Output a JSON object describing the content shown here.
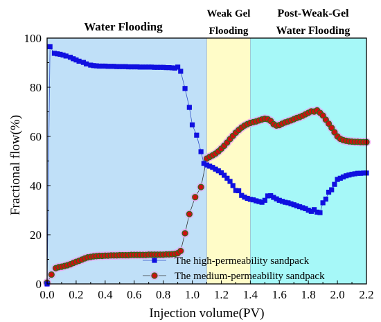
{
  "chart_data": {
    "type": "scatter",
    "xlabel": "Injection volume(PV)",
    "ylabel": "Fractional flow(%)",
    "xlim": [
      0,
      2.2
    ],
    "ylim": [
      0,
      100
    ],
    "x_ticks": [
      "0.0",
      "0.2",
      "0.4",
      "0.6",
      "0.8",
      "1.0",
      "1.2",
      "1.4",
      "1.6",
      "1.8",
      "2.0",
      "2.2"
    ],
    "y_ticks": [
      "0",
      "20",
      "40",
      "60",
      "80",
      "100"
    ],
    "grid": false,
    "legend_position": "bottom-center",
    "phases": [
      {
        "label_lines": [
          "Water Flooding"
        ],
        "x_start": 0.0,
        "x_end": 1.1,
        "color": "#c0e0f8"
      },
      {
        "label_lines": [
          "Weak Gel",
          "Flooding"
        ],
        "x_start": 1.1,
        "x_end": 1.4,
        "color": "#fffcc8"
      },
      {
        "label_lines": [
          "Post-Weak-Gel",
          "Water Flooding"
        ],
        "x_start": 1.4,
        "x_end": 2.2,
        "color": "#a6f8f8"
      }
    ],
    "series": [
      {
        "name": "The high-permeability sandpack",
        "marker": "square",
        "color": "#1010e0",
        "x": [
          0.0,
          0.02,
          0.05,
          0.07,
          0.09,
          0.11,
          0.13,
          0.16,
          0.18,
          0.2,
          0.22,
          0.25,
          0.27,
          0.3,
          0.32,
          0.34,
          0.36,
          0.38,
          0.4,
          0.42,
          0.44,
          0.46,
          0.48,
          0.5,
          0.52,
          0.54,
          0.56,
          0.58,
          0.6,
          0.62,
          0.64,
          0.66,
          0.68,
          0.7,
          0.72,
          0.74,
          0.76,
          0.78,
          0.8,
          0.82,
          0.84,
          0.86,
          0.88,
          0.9,
          0.92,
          0.95,
          0.98,
          1.0,
          1.03,
          1.06,
          1.08,
          1.1,
          1.12,
          1.14,
          1.16,
          1.18,
          1.2,
          1.22,
          1.24,
          1.26,
          1.28,
          1.3,
          1.32,
          1.34,
          1.36,
          1.38,
          1.4,
          1.42,
          1.44,
          1.46,
          1.48,
          1.5,
          1.52,
          1.54,
          1.56,
          1.58,
          1.6,
          1.62,
          1.64,
          1.66,
          1.68,
          1.7,
          1.72,
          1.74,
          1.76,
          1.78,
          1.8,
          1.82,
          1.84,
          1.86,
          1.88,
          1.9,
          1.92,
          1.94,
          1.96,
          1.98,
          2.0,
          2.02,
          2.04,
          2.06,
          2.08,
          2.1,
          2.12,
          2.14,
          2.16,
          2.18,
          2.2
        ],
        "y": [
          0,
          96.5,
          93.8,
          93.6,
          93.4,
          93.1,
          92.7,
          92.2,
          91.6,
          91.1,
          90.6,
          90.1,
          89.5,
          89.0,
          88.8,
          88.7,
          88.6,
          88.6,
          88.6,
          88.5,
          88.5,
          88.5,
          88.4,
          88.4,
          88.4,
          88.4,
          88.3,
          88.3,
          88.3,
          88.3,
          88.2,
          88.2,
          88.2,
          88.2,
          88.2,
          88.1,
          88.1,
          88.1,
          88.1,
          88.0,
          88.0,
          87.9,
          87.8,
          88.2,
          86.5,
          79.5,
          71.8,
          64.7,
          60.5,
          53.8,
          49.0,
          48.4,
          47.9,
          47.4,
          46.7,
          46.0,
          45.2,
          44.2,
          43.0,
          41.7,
          40.0,
          38.0,
          37.9,
          36.0,
          35.3,
          34.8,
          34.4,
          34.2,
          33.8,
          33.5,
          33.2,
          34.0,
          35.8,
          35.9,
          35.2,
          34.6,
          34.0,
          33.6,
          33.2,
          33.0,
          32.6,
          32.2,
          31.8,
          31.4,
          31.0,
          30.6,
          30.0,
          29.5,
          30.2,
          29.2,
          29.0,
          33.0,
          34.5,
          37.3,
          38.3,
          40.5,
          42.5,
          43.0,
          43.5,
          44.0,
          44.3,
          44.6,
          44.8,
          45.0,
          45.0,
          45.1,
          45.1
        ],
        "y_display_cut": [
          0,
          96.5,
          93.8,
          93.6,
          93.4,
          93.1,
          92.7,
          92.2,
          91.6,
          91.1,
          90.6,
          90.1,
          89.5,
          89.0,
          88.8,
          88.7,
          88.6,
          88.6,
          88.6,
          88.5,
          88.5,
          88.5,
          88.4,
          88.4,
          88.4,
          88.4,
          88.3,
          88.3,
          88.3,
          88.3,
          88.2,
          88.2,
          88.2,
          88.2,
          88.2,
          88.1,
          88.1,
          88.1,
          88.1,
          88.0,
          88.0,
          87.9,
          87.8,
          88.2,
          86.5,
          79.5,
          71.8,
          64.7,
          60.5
        ]
      },
      {
        "name": "The medium-permeability sandpack",
        "marker": "circle",
        "color": "#cc1010",
        "edge_color": "#2a6e1c",
        "glow_color": "#f0a0f0",
        "x": [
          0.0,
          0.03,
          0.06,
          0.08,
          0.1,
          0.12,
          0.14,
          0.16,
          0.18,
          0.2,
          0.22,
          0.24,
          0.26,
          0.28,
          0.3,
          0.32,
          0.34,
          0.36,
          0.38,
          0.4,
          0.42,
          0.44,
          0.46,
          0.48,
          0.5,
          0.52,
          0.54,
          0.56,
          0.58,
          0.6,
          0.62,
          0.64,
          0.66,
          0.68,
          0.7,
          0.72,
          0.74,
          0.76,
          0.78,
          0.8,
          0.82,
          0.84,
          0.86,
          0.88,
          0.9,
          0.92,
          0.95,
          0.98,
          1.02,
          1.06,
          1.1,
          1.12,
          1.14,
          1.16,
          1.18,
          1.2,
          1.22,
          1.24,
          1.26,
          1.28,
          1.3,
          1.32,
          1.34,
          1.36,
          1.38,
          1.4,
          1.42,
          1.44,
          1.46,
          1.48,
          1.5,
          1.52,
          1.54,
          1.56,
          1.58,
          1.6,
          1.62,
          1.64,
          1.66,
          1.68,
          1.7,
          1.72,
          1.74,
          1.76,
          1.78,
          1.8,
          1.82,
          1.84,
          1.86,
          1.88,
          1.9,
          1.92,
          1.94,
          1.96,
          1.98,
          2.0,
          2.02,
          2.04,
          2.06,
          2.08,
          2.1,
          2.12,
          2.14,
          2.16,
          2.18,
          2.2
        ],
        "y": [
          0.5,
          3.8,
          6.4,
          6.8,
          7.0,
          7.3,
          7.6,
          8.0,
          8.5,
          9.0,
          9.4,
          9.9,
          10.4,
          10.8,
          11.0,
          11.2,
          11.3,
          11.4,
          11.4,
          11.5,
          11.5,
          11.6,
          11.6,
          11.6,
          11.7,
          11.7,
          11.7,
          11.7,
          11.8,
          11.8,
          11.8,
          11.8,
          11.8,
          11.8,
          11.9,
          11.9,
          11.9,
          11.9,
          11.9,
          11.9,
          12.0,
          12.0,
          12.1,
          12.2,
          12.5,
          13.4,
          20.6,
          28.4,
          35.3,
          39.4,
          51.0,
          51.7,
          52.3,
          53.0,
          53.9,
          55.0,
          56.2,
          57.5,
          58.9,
          60.2,
          61.5,
          62.6,
          63.6,
          64.4,
          65.0,
          65.5,
          65.8,
          66.1,
          66.5,
          66.9,
          67.2,
          67.0,
          66.3,
          65.0,
          64.4,
          64.6,
          65.2,
          65.7,
          66.1,
          66.5,
          67.0,
          67.5,
          67.9,
          68.4,
          69.0,
          69.6,
          70.2,
          70.1,
          70.6,
          69.6,
          68.5,
          66.8,
          65.2,
          63.5,
          61.7,
          60.0,
          59.0,
          58.5,
          58.2,
          58.0,
          57.9,
          57.8,
          57.8,
          57.7,
          57.7,
          57.7
        ]
      }
    ]
  }
}
